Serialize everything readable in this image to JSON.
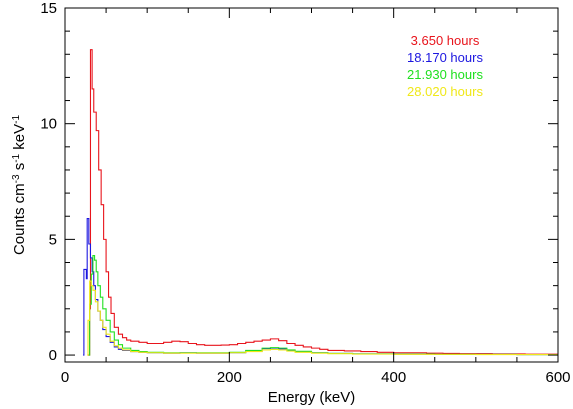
{
  "chart_data": {
    "type": "line",
    "title": "",
    "xlabel": "Energy (keV)",
    "ylabel": {
      "base": "Counts cm",
      "exp1": "-3",
      "mid": " s",
      "exp2": "-1",
      "mid2": " keV",
      "exp3": "-1"
    },
    "xlim": [
      0,
      600
    ],
    "ylim": [
      -0.3,
      15
    ],
    "x_ticks": [
      0,
      200,
      400,
      600
    ],
    "y_ticks": [
      0,
      5,
      10,
      15
    ],
    "grid": false,
    "legend_position": "top-right",
    "series": [
      {
        "name": "3.650 hours",
        "color": "#e8141c",
        "step": true,
        "points": [
          [
            28,
            0
          ],
          [
            30,
            2
          ],
          [
            31,
            13.2
          ],
          [
            33,
            11.5
          ],
          [
            35,
            10.5
          ],
          [
            38,
            9.7
          ],
          [
            41,
            8.0
          ],
          [
            44,
            6.5
          ],
          [
            47,
            5.0
          ],
          [
            50,
            3.6
          ],
          [
            53,
            2.5
          ],
          [
            56,
            1.8
          ],
          [
            60,
            1.2
          ],
          [
            65,
            0.9
          ],
          [
            70,
            0.75
          ],
          [
            75,
            0.65
          ],
          [
            80,
            0.6
          ],
          [
            90,
            0.55
          ],
          [
            100,
            0.5
          ],
          [
            110,
            0.5
          ],
          [
            120,
            0.55
          ],
          [
            130,
            0.6
          ],
          [
            140,
            0.58
          ],
          [
            150,
            0.5
          ],
          [
            160,
            0.45
          ],
          [
            170,
            0.42
          ],
          [
            180,
            0.42
          ],
          [
            190,
            0.43
          ],
          [
            200,
            0.45
          ],
          [
            210,
            0.5
          ],
          [
            220,
            0.55
          ],
          [
            230,
            0.6
          ],
          [
            240,
            0.65
          ],
          [
            250,
            0.7
          ],
          [
            260,
            0.62
          ],
          [
            270,
            0.5
          ],
          [
            280,
            0.42
          ],
          [
            290,
            0.35
          ],
          [
            300,
            0.3
          ],
          [
            310,
            0.25
          ],
          [
            320,
            0.2
          ],
          [
            340,
            0.18
          ],
          [
            360,
            0.15
          ],
          [
            380,
            0.12
          ],
          [
            400,
            0.1
          ],
          [
            420,
            0.1
          ],
          [
            440,
            0.08
          ],
          [
            460,
            0.07
          ],
          [
            480,
            0.06
          ],
          [
            500,
            0.06
          ],
          [
            520,
            0.05
          ],
          [
            540,
            0.05
          ],
          [
            560,
            0.04
          ],
          [
            580,
            0.04
          ],
          [
            600,
            0.04
          ]
        ]
      },
      {
        "name": "18.170 hours",
        "color": "#1c16e0",
        "step": true,
        "points": [
          [
            22,
            0
          ],
          [
            23,
            3.7
          ],
          [
            26,
            3.3
          ],
          [
            27,
            5.9
          ],
          [
            29,
            4.8
          ],
          [
            31,
            4.2
          ],
          [
            33,
            3.6
          ],
          [
            35,
            3.0
          ],
          [
            37,
            2.4
          ],
          [
            40,
            1.9
          ],
          [
            43,
            1.5
          ],
          [
            46,
            1.1
          ],
          [
            50,
            0.8
          ],
          [
            55,
            0.55
          ],
          [
            60,
            0.35
          ],
          [
            65,
            0.25
          ],
          [
            70,
            0.2
          ],
          [
            80,
            0.15
          ],
          [
            90,
            0.12
          ],
          [
            100,
            0.1
          ],
          [
            120,
            0.08
          ],
          [
            140,
            0.1
          ],
          [
            160,
            0.08
          ],
          [
            180,
            0.08
          ],
          [
            200,
            0.1
          ],
          [
            220,
            0.18
          ],
          [
            240,
            0.28
          ],
          [
            250,
            0.3
          ],
          [
            260,
            0.27
          ],
          [
            270,
            0.2
          ],
          [
            280,
            0.15
          ],
          [
            300,
            0.1
          ],
          [
            320,
            0.07
          ],
          [
            350,
            0.05
          ],
          [
            400,
            0.04
          ],
          [
            450,
            0.03
          ],
          [
            500,
            0.03
          ],
          [
            550,
            0.02
          ],
          [
            600,
            0.02
          ]
        ]
      },
      {
        "name": "21.930 hours",
        "color": "#20e020",
        "step": true,
        "points": [
          [
            29,
            0
          ],
          [
            30,
            2.2
          ],
          [
            32,
            3.5
          ],
          [
            34,
            4.3
          ],
          [
            36,
            4.1
          ],
          [
            38,
            3.6
          ],
          [
            40,
            3.0
          ],
          [
            43,
            2.5
          ],
          [
            46,
            2.0
          ],
          [
            50,
            1.5
          ],
          [
            55,
            1.0
          ],
          [
            60,
            0.65
          ],
          [
            65,
            0.45
          ],
          [
            70,
            0.3
          ],
          [
            80,
            0.2
          ],
          [
            90,
            0.15
          ],
          [
            100,
            0.12
          ],
          [
            120,
            0.1
          ],
          [
            140,
            0.1
          ],
          [
            160,
            0.1
          ],
          [
            180,
            0.1
          ],
          [
            200,
            0.12
          ],
          [
            220,
            0.2
          ],
          [
            240,
            0.3
          ],
          [
            250,
            0.32
          ],
          [
            260,
            0.3
          ],
          [
            270,
            0.22
          ],
          [
            280,
            0.16
          ],
          [
            300,
            0.1
          ],
          [
            320,
            0.07
          ],
          [
            350,
            0.05
          ],
          [
            400,
            0.04
          ],
          [
            450,
            0.03
          ],
          [
            500,
            0.03
          ],
          [
            550,
            0.02
          ],
          [
            600,
            0.02
          ]
        ]
      },
      {
        "name": "28.020 hours",
        "color": "#f0e81a",
        "step": true,
        "points": [
          [
            27,
            0
          ],
          [
            28,
            1.5
          ],
          [
            30,
            3.2
          ],
          [
            32,
            3.0
          ],
          [
            34,
            2.8
          ],
          [
            37,
            2.3
          ],
          [
            40,
            1.9
          ],
          [
            43,
            1.5
          ],
          [
            46,
            1.2
          ],
          [
            50,
            0.9
          ],
          [
            55,
            0.6
          ],
          [
            60,
            0.4
          ],
          [
            65,
            0.3
          ],
          [
            70,
            0.22
          ],
          [
            80,
            0.15
          ],
          [
            90,
            0.12
          ],
          [
            100,
            0.1
          ],
          [
            120,
            0.08
          ],
          [
            150,
            0.08
          ],
          [
            180,
            0.08
          ],
          [
            200,
            0.1
          ],
          [
            220,
            0.15
          ],
          [
            240,
            0.22
          ],
          [
            250,
            0.24
          ],
          [
            260,
            0.22
          ],
          [
            270,
            0.17
          ],
          [
            280,
            0.12
          ],
          [
            300,
            0.08
          ],
          [
            320,
            0.06
          ],
          [
            350,
            0.04
          ],
          [
            400,
            0.03
          ],
          [
            450,
            0.03
          ],
          [
            500,
            0.02
          ],
          [
            550,
            0.02
          ],
          [
            600,
            0.02
          ]
        ]
      }
    ]
  }
}
